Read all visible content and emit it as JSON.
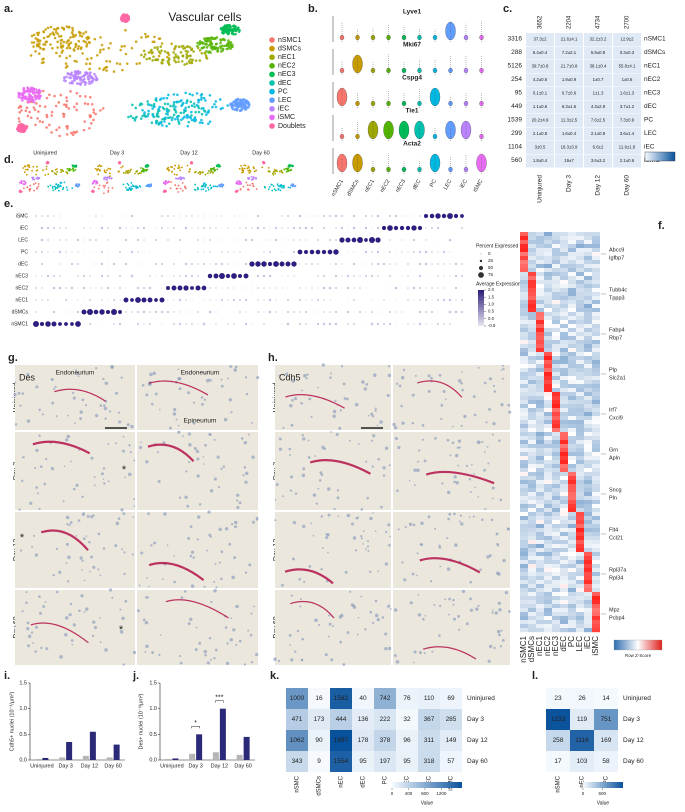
{
  "panels": {
    "a": {
      "label": "a.",
      "title": "Vascular cells",
      "clusters": [
        {
          "name": "nSMC1",
          "color": "#F8766D"
        },
        {
          "name": "dSMCs",
          "color": "#C89B00"
        },
        {
          "name": "nEC1",
          "color": "#9FA800"
        },
        {
          "name": "nEC2",
          "color": "#53B400"
        },
        {
          "name": "nEC3",
          "color": "#00BC56"
        },
        {
          "name": "dEC",
          "color": "#00C0AF"
        },
        {
          "name": "PC",
          "color": "#00B9E3"
        },
        {
          "name": "LEC",
          "color": "#619CFF"
        },
        {
          "name": "iEC",
          "color": "#B983FF"
        },
        {
          "name": "iSMC",
          "color": "#E76BF3"
        },
        {
          "name": "Doublets",
          "color": "#FF67A4"
        }
      ]
    },
    "b": {
      "label": "b.",
      "genes": [
        "Lyve1",
        "Mki67",
        "Cspg4",
        "Tie1",
        "Acta2"
      ],
      "groups": [
        "nSMC1",
        "dSMCs",
        "nEC1",
        "nEC2",
        "nEC3",
        "dEC",
        "PC",
        "LEC",
        "iEC",
        "iSMC"
      ]
    },
    "c": {
      "label": "c.",
      "columns": [
        "Uninjured",
        "Day 3",
        "Day 12",
        "Day 60"
      ],
      "column_totals": [
        3652,
        2204,
        4734,
        2700
      ],
      "rows": [
        {
          "total": 3316,
          "name": "nSMC1",
          "cells": [
            "37.3±2",
            "21.6±4.1",
            "32.2±3.2",
            "12.9±2"
          ]
        },
        {
          "total": 288,
          "name": "dSMCs",
          "cells": [
            "6.4±0.4",
            "7.2±2.1",
            "5.9±0.8",
            "0.3±0.3"
          ]
        },
        {
          "total": 5126,
          "name": "nEC1",
          "cells": [
            "39.7±0.8",
            "21.7±0.8",
            "38.1±0.4",
            "55.8±4.1"
          ]
        },
        {
          "total": 254,
          "name": "nEC2",
          "cells": [
            "4.2±0.6",
            "1.9±0.9",
            "1±0.7",
            "1±0.6"
          ]
        },
        {
          "total": 95,
          "name": "nEC3",
          "cells": [
            "0.1±0.1",
            "0.7±0.6",
            "1±1.3",
            "1.6±1.3"
          ]
        },
        {
          "total": 449,
          "name": "dEC",
          "cells": [
            "1.1±0.6",
            "6.3±1.6",
            "4.3±2.8",
            "3.7±1.2"
          ]
        },
        {
          "total": 1539,
          "name": "PC",
          "cells": [
            "20.2±4.9",
            "11.3±2.5",
            "7.6±2.5",
            "7.3±0.9"
          ]
        },
        {
          "total": 299,
          "name": "LEC",
          "cells": [
            "2.1±0.8",
            "1.6±0.4",
            "2.1±0.9",
            "3.6±1.4"
          ]
        },
        {
          "total": 1104,
          "name": "iEC",
          "cells": [
            "3±0.5",
            "18.3±3.9",
            "6.6±2",
            "11.9±1.8"
          ]
        },
        {
          "total": 560,
          "name": "iSMC",
          "cells": [
            "1.8±0.4",
            "19±7",
            "3.6±3.2",
            "2.1±0.6"
          ]
        }
      ]
    },
    "d": {
      "label": "d.",
      "conditions": [
        "Uninjured",
        "Day 3",
        "Day 12",
        "Day 60"
      ]
    },
    "e": {
      "label": "e.",
      "rows": [
        "iSMC",
        "iEC",
        "LEC",
        "PC",
        "dEC",
        "nEC3",
        "nEC2",
        "nEC1",
        "dSMCs",
        "nSMC1"
      ],
      "size_legend": {
        "title": "Percent Expressed",
        "ticks": [
          0,
          25,
          50,
          75
        ]
      },
      "color_legend": {
        "title": "Average Expression",
        "ticks": [
          {
            "value": 2,
            "label": "2.0"
          },
          {
            "value": 1.5,
            "label": "1.5"
          },
          {
            "value": 1,
            "label": "1.0"
          },
          {
            "value": 0.5,
            "label": "0.5"
          },
          {
            "value": 0,
            "label": "0.0"
          },
          {
            "value": -0.5,
            "label": "-0.5"
          }
        ]
      }
    },
    "f": {
      "label": "f.",
      "genes": [
        [
          "Abcc9",
          "Igfbp7"
        ],
        [
          "Tubb4c",
          "Tppp3"
        ],
        [
          "Fabp4",
          "Rbp7"
        ],
        [
          "Plp",
          "Slc2a1"
        ],
        [
          "Irf7",
          "Cxcl9"
        ],
        [
          "Grn",
          "Apln"
        ],
        [
          "Sncg",
          "Pln"
        ],
        [
          "Flt4",
          "Ccl21"
        ],
        [
          "Rpl37a",
          "Rpl34"
        ],
        [
          "Mpz",
          "Pcbp4"
        ]
      ],
      "groups": [
        "nSMC1",
        "dSMCs",
        "nEC1",
        "nEC2",
        "nEC3",
        "dEC",
        "PC",
        "LEC",
        "iEC",
        "iSMC"
      ],
      "colorbar_title": "Row Z-Score"
    },
    "g": {
      "label": "g.",
      "stain": "Des",
      "regions": [
        "Endoneurium",
        "Endoneurium",
        "Epineurium"
      ],
      "rows": [
        "Uninjured",
        "Day 3",
        "Day 12",
        "Day 60"
      ],
      "marker": "*"
    },
    "h": {
      "label": "h.",
      "stain": "Cdh5",
      "rows": [
        "Uninjured",
        "Day 3",
        "Day 12",
        "Day 60"
      ]
    },
    "i": {
      "label": "i.",
      "ylabel": "Cdh5+ nuclei (10⁻³/µm²)",
      "categories": [
        "Uninjured",
        "Day 3",
        "Day 12",
        "Day 60"
      ],
      "series": [
        {
          "color": "#b5b5b5",
          "values": [
            0.02,
            0.05,
            0.08,
            0.05
          ]
        },
        {
          "color": "#2b2a78",
          "values": [
            0.04,
            0.35,
            0.55,
            0.3
          ]
        }
      ],
      "ylim": [
        0,
        1.5
      ],
      "yticks": [
        {
          "value": 0,
          "label": "0.0"
        },
        {
          "value": 0.5,
          "label": "0.5"
        },
        {
          "value": 1,
          "label": "1.0"
        },
        {
          "value": 1.5,
          "label": "1.5"
        }
      ]
    },
    "j": {
      "label": "j.",
      "ylabel": "Des+ nuclei (10⁻³/µm²)",
      "categories": [
        "Uninjured",
        "Day 3",
        "Day 12",
        "Day 60"
      ],
      "series": [
        {
          "color": "#b5b5b5",
          "values": [
            0.02,
            0.12,
            0.15,
            0.1
          ]
        },
        {
          "color": "#2b2a78",
          "values": [
            0.03,
            0.5,
            1.0,
            0.45
          ]
        }
      ],
      "ylim": [
        0,
        1.5
      ],
      "yticks": [
        {
          "value": 0,
          "label": "0.0"
        },
        {
          "value": 0.5,
          "label": "0.5"
        },
        {
          "value": 1,
          "label": "1.0"
        },
        {
          "value": 1.5,
          "label": "1.5"
        }
      ],
      "annotations": [
        {
          "text": "*",
          "category": "Day 3"
        },
        {
          "text": "***",
          "category": "Day 12"
        }
      ]
    },
    "k": {
      "label": "k.",
      "columns": [
        "nSMC",
        "dSMCs",
        "nEC",
        "dEC",
        "PC",
        "LEC",
        "iEC",
        "iSMC"
      ],
      "rows": [
        "Uninjured",
        "Day 3",
        "Day 12",
        "Day 60"
      ],
      "values": [
        [
          1000,
          16,
          1582,
          40,
          742,
          76,
          110,
          69
        ],
        [
          471,
          173,
          444,
          136,
          222,
          32,
          367,
          285
        ],
        [
          1062,
          90,
          1697,
          178,
          378,
          96,
          311,
          149
        ],
        [
          343,
          9,
          1554,
          95,
          197,
          95,
          318,
          57
        ]
      ],
      "colorbar": {
        "title": "Value",
        "lim": [
          0,
          1700
        ],
        "ticks": [
          0,
          400,
          800,
          1200
        ]
      }
    },
    "l": {
      "label": "l.",
      "columns": [
        "nSMC",
        "nEC",
        "PC"
      ],
      "rows": [
        "Uninjured",
        "Day 3",
        "Day 12",
        "Day 60"
      ],
      "values": [
        [
          23,
          26,
          14
        ],
        [
          1233,
          119,
          751
        ],
        [
          258,
          1116,
          169
        ],
        [
          17,
          103,
          58
        ]
      ],
      "colorbar": {
        "title": "Value",
        "lim": [
          0,
          1250
        ],
        "ticks": [
          0,
          600
        ]
      }
    }
  }
}
